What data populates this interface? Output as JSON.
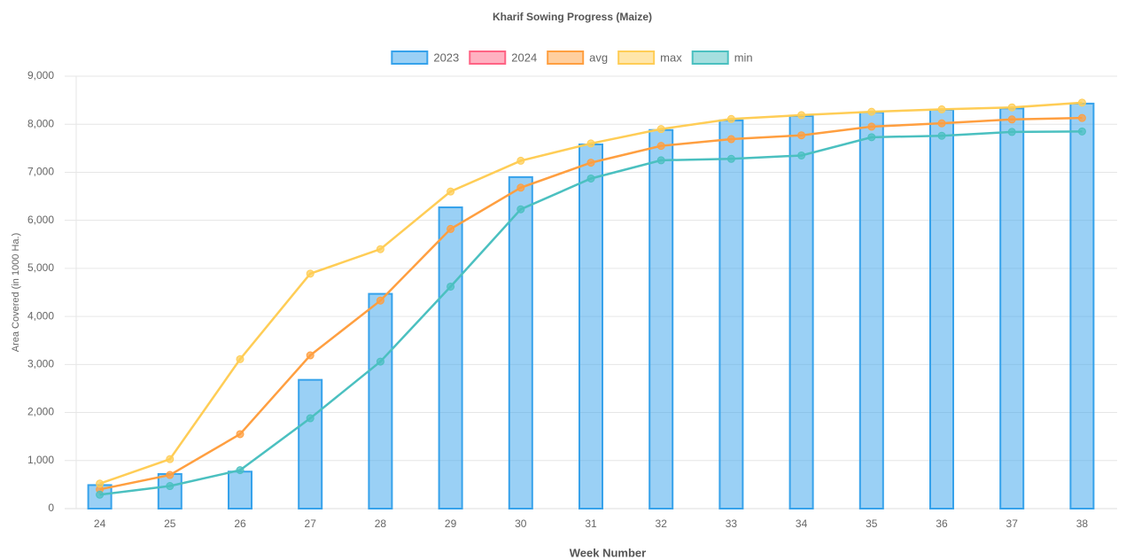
{
  "chart_data": {
    "type": "bar",
    "title": "Kharif Sowing Progress (Maize)",
    "x_label": "Week Number",
    "y_label": "Area Covered (in 1000 Ha.)",
    "categories": [
      "24",
      "25",
      "26",
      "27",
      "28",
      "29",
      "30",
      "31",
      "32",
      "33",
      "34",
      "35",
      "36",
      "37",
      "38"
    ],
    "series": [
      {
        "name": "2023",
        "type": "bar",
        "color": "#36a2eb",
        "values": [
          490,
          720,
          770,
          2680,
          4470,
          6270,
          6900,
          7580,
          7880,
          8080,
          8170,
          8250,
          8300,
          8330,
          8430
        ]
      },
      {
        "name": "2024",
        "type": "line",
        "color": "#ff6384",
        "values": [
          null,
          null,
          null,
          null,
          null,
          null,
          null,
          null,
          null,
          null,
          null,
          null,
          null,
          null,
          null
        ]
      },
      {
        "name": "avg",
        "type": "line",
        "color": "#ff9f40",
        "values": [
          400,
          700,
          1550,
          3190,
          4330,
          5820,
          6680,
          7200,
          7550,
          7690,
          7770,
          7950,
          8020,
          8100,
          8130
        ]
      },
      {
        "name": "max",
        "type": "line",
        "color": "#ffcd56",
        "values": [
          520,
          1030,
          3110,
          4890,
          5400,
          6600,
          7240,
          7600,
          7900,
          8110,
          8190,
          8260,
          8310,
          8350,
          8450
        ]
      },
      {
        "name": "min",
        "type": "line",
        "color": "#4bc0c0",
        "values": [
          290,
          470,
          800,
          1880,
          3060,
          4620,
          6230,
          6870,
          7250,
          7280,
          7350,
          7730,
          7760,
          7840,
          7850
        ]
      }
    ],
    "ylim": [
      0,
      9000
    ],
    "yticks": [
      0,
      {
        "value": 1000,
        "label": "1,000"
      },
      {
        "value": 2000,
        "label": "2,000"
      },
      {
        "value": 3000,
        "label": "3,000"
      },
      {
        "value": 4000,
        "label": "4,000"
      },
      {
        "value": 5000,
        "label": "5,000"
      },
      {
        "value": 6000,
        "label": "6,000"
      },
      {
        "value": 7000,
        "label": "7,000"
      },
      {
        "value": 8000,
        "label": "8,000"
      },
      {
        "value": 9000,
        "label": "9,000"
      }
    ],
    "grid": true,
    "legend": "top"
  }
}
